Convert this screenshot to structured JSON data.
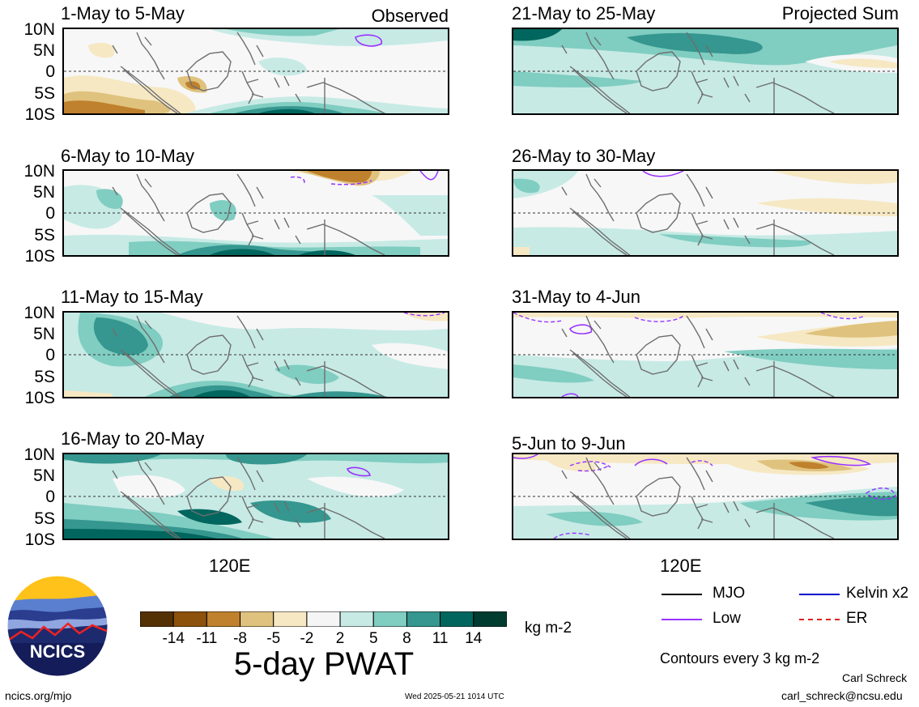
{
  "panels": [
    {
      "id": "p1",
      "title": "1-May to 5-May",
      "tag": "Observed"
    },
    {
      "id": "p2",
      "title": "21-May to 25-May",
      "tag": "Projected Sum"
    },
    {
      "id": "p3",
      "title": "6-May to 10-May",
      "tag": ""
    },
    {
      "id": "p4",
      "title": "26-May to 30-May",
      "tag": ""
    },
    {
      "id": "p5",
      "title": "11-May to 15-May",
      "tag": ""
    },
    {
      "id": "p6",
      "title": "31-May to 4-Jun",
      "tag": ""
    },
    {
      "id": "p7",
      "title": "16-May to 20-May",
      "tag": ""
    },
    {
      "id": "p8",
      "title": "5-Jun to 9-Jun",
      "tag": ""
    }
  ],
  "y_axis_labels": [
    "10N",
    "5N",
    "0",
    "5S",
    "10S"
  ],
  "x_axis_label": "120E",
  "colorbar": {
    "ticks": [
      "-14",
      "-11",
      "-8",
      "-5",
      "-2",
      "2",
      "5",
      "8",
      "11",
      "14"
    ],
    "colors": [
      "#543005",
      "#8c510a",
      "#bf812d",
      "#dfc27d",
      "#f6e8c3",
      "#f5f5f5",
      "#c7eae5",
      "#80cdc1",
      "#35978f",
      "#01665e",
      "#003c30"
    ],
    "units": "kg m-2",
    "title": "5-day PWAT"
  },
  "legend": {
    "items": [
      {
        "label": "MJO",
        "color": "#000000",
        "style": "solid"
      },
      {
        "label": "Kelvin x2",
        "color": "#0000cc",
        "style": "solid"
      },
      {
        "label": "Low",
        "color": "#9933ff",
        "style": "solid"
      },
      {
        "label": "ER",
        "color": "#dd2222",
        "style": "dashed"
      }
    ],
    "contour_note": "Contours every 3 kg m-2"
  },
  "logo": {
    "text": "NCICS"
  },
  "footer": {
    "left": "ncics.org/mjo",
    "center": "Wed 2025-05-21 1014 UTC",
    "author": "Carl Schreck",
    "email": "carl_schreck@ncsu.edu"
  }
}
